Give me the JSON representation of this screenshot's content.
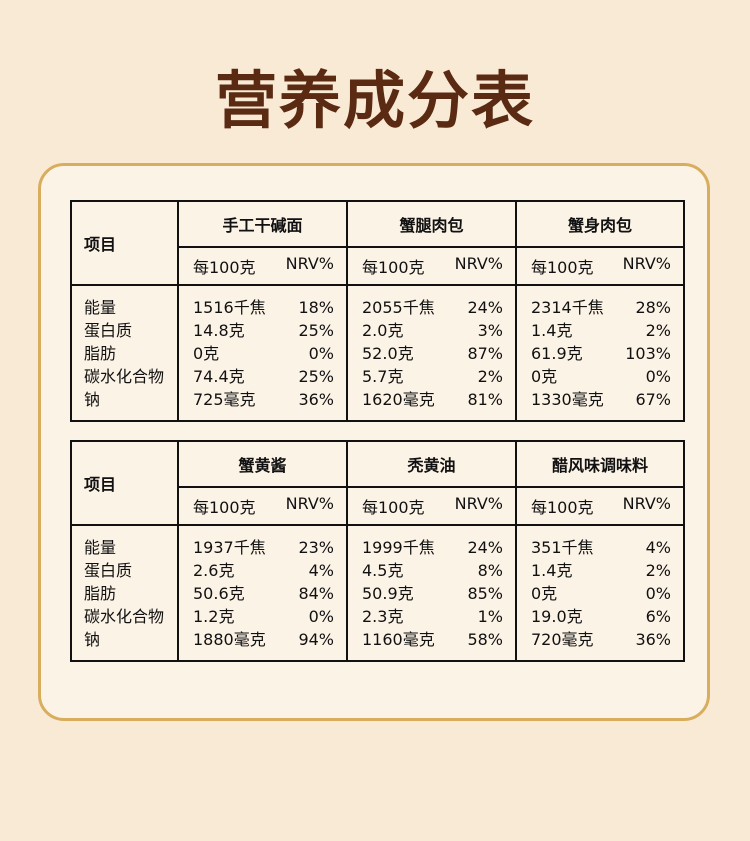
{
  "title": "营养成分表",
  "header": {
    "item_label": "项目",
    "per100_label": "每100克",
    "nrv_label": "NRV%"
  },
  "nutrients": [
    "能量",
    "蛋白质",
    "脂肪",
    "碳水化合物",
    "钠"
  ],
  "tables": [
    {
      "products": [
        {
          "name": "手工干碱面",
          "rows": [
            [
              "1516千焦",
              "18%"
            ],
            [
              "14.8克",
              "25%"
            ],
            [
              "0克",
              "0%"
            ],
            [
              "74.4克",
              "25%"
            ],
            [
              "725毫克",
              "36%"
            ]
          ]
        },
        {
          "name": "蟹腿肉包",
          "rows": [
            [
              "2055千焦",
              "24%"
            ],
            [
              "2.0克",
              "3%"
            ],
            [
              "52.0克",
              "87%"
            ],
            [
              "5.7克",
              "2%"
            ],
            [
              "1620毫克",
              "81%"
            ]
          ]
        },
        {
          "name": "蟹身肉包",
          "rows": [
            [
              "2314千焦",
              "28%"
            ],
            [
              "1.4克",
              "2%"
            ],
            [
              "61.9克",
              "103%"
            ],
            [
              "0克",
              "0%"
            ],
            [
              "1330毫克",
              "67%"
            ]
          ]
        }
      ]
    },
    {
      "products": [
        {
          "name": "蟹黄酱",
          "rows": [
            [
              "1937千焦",
              "23%"
            ],
            [
              "2.6克",
              "4%"
            ],
            [
              "50.6克",
              "84%"
            ],
            [
              "1.2克",
              "0%"
            ],
            [
              "1880毫克",
              "94%"
            ]
          ]
        },
        {
          "name": "秃黄油",
          "rows": [
            [
              "1999千焦",
              "24%"
            ],
            [
              "4.5克",
              "8%"
            ],
            [
              "50.9克",
              "85%"
            ],
            [
              "2.3克",
              "1%"
            ],
            [
              "1160毫克",
              "58%"
            ]
          ]
        },
        {
          "name": "醋风味调味料",
          "rows": [
            [
              "351千焦",
              "4%"
            ],
            [
              "1.4克",
              "2%"
            ],
            [
              "0克",
              "0%"
            ],
            [
              "19.0克",
              "6%"
            ],
            [
              "720毫克",
              "36%"
            ]
          ]
        }
      ]
    }
  ]
}
